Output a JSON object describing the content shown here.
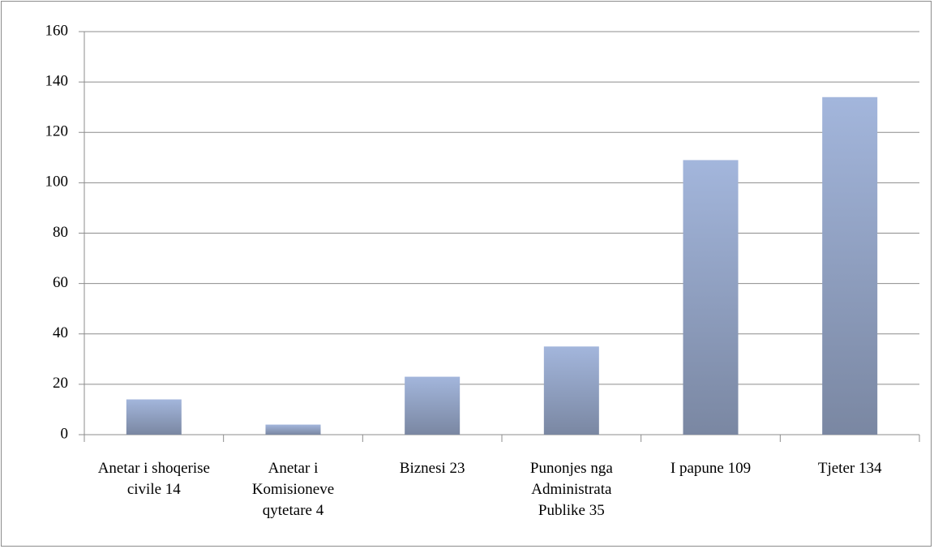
{
  "chart_data": {
    "type": "bar",
    "categories": [
      "Anetar i shoqerise civile 14",
      "Anetar i Komisioneve qytetare 4",
      "Biznesi 23",
      "Punonjes nga Administrata Publike 35",
      "I papune 109",
      "Tjeter 134"
    ],
    "values": [
      14,
      4,
      23,
      35,
      109,
      134
    ],
    "color": "#a3b6dc",
    "ylim": [
      0,
      160
    ],
    "yticks": [
      0,
      20,
      40,
      60,
      80,
      100,
      120,
      140,
      160
    ],
    "grid": true
  }
}
